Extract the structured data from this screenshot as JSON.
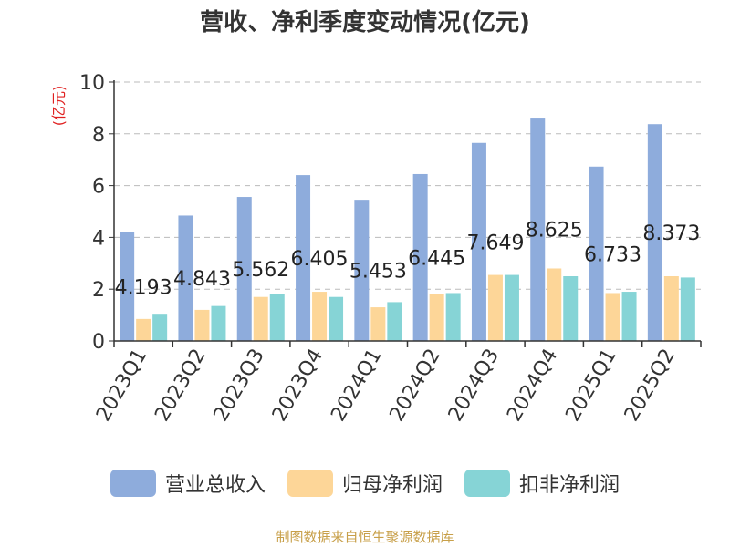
{
  "source": "制图数据来自恒生聚源数据库",
  "chart_data": {
    "type": "bar",
    "title": "营收、净利季度变动情况(亿元)",
    "ylabel": "(亿元)",
    "ylim": [
      0,
      10
    ],
    "yticks": [
      0,
      2,
      4,
      6,
      8,
      10
    ],
    "grid": true,
    "legend_position": "bottom",
    "categories": [
      "2023Q1",
      "2023Q2",
      "2023Q3",
      "2023Q4",
      "2024Q1",
      "2024Q2",
      "2024Q3",
      "2024Q4",
      "2025Q1",
      "2025Q2"
    ],
    "series": [
      {
        "name": "营业总收入",
        "color": "#8eacdc",
        "values": [
          4.193,
          4.843,
          5.562,
          6.405,
          5.453,
          6.445,
          7.649,
          8.625,
          6.733,
          8.373
        ],
        "labels": [
          "4.193",
          "4.843",
          "5.562",
          "6.405",
          "5.453",
          "6.445",
          "7.649",
          "8.625",
          "6.733",
          "8.373"
        ]
      },
      {
        "name": "归母净利润",
        "color": "#fdd698",
        "values": [
          0.85,
          1.2,
          1.7,
          1.9,
          1.3,
          1.8,
          2.55,
          2.8,
          1.85,
          2.5
        ]
      },
      {
        "name": "扣非净利润",
        "color": "#86d4d6",
        "values": [
          1.05,
          1.35,
          1.8,
          1.7,
          1.5,
          1.85,
          2.55,
          2.5,
          1.9,
          2.45
        ]
      }
    ]
  }
}
